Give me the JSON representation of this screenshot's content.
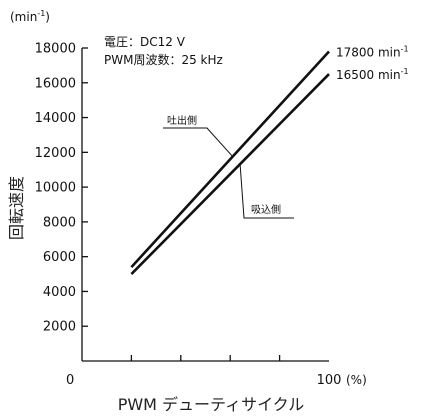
{
  "chart_data": {
    "type": "line",
    "unit_label": "(min",
    "unit_sup": "-1",
    "unit_close": ")",
    "ylabel": "回転速度",
    "xlabel": "PWM デューティサイクル",
    "x_unit": "(%)",
    "xlim": [
      0,
      100
    ],
    "ylim": [
      0,
      18000
    ],
    "x_ticks": [
      {
        "value": 0,
        "label": "0"
      },
      {
        "value": 100,
        "label": "100"
      }
    ],
    "x_minor_ticks": [
      20,
      40,
      60,
      80
    ],
    "y_ticks": [
      {
        "value": 2000,
        "label": "2000"
      },
      {
        "value": 4000,
        "label": "4000"
      },
      {
        "value": 6000,
        "label": "6000"
      },
      {
        "value": 8000,
        "label": "8000"
      },
      {
        "value": 10000,
        "label": "10000"
      },
      {
        "value": 12000,
        "label": "12000"
      },
      {
        "value": 14000,
        "label": "14000"
      },
      {
        "value": 16000,
        "label": "16000"
      },
      {
        "value": 18000,
        "label": "18000"
      }
    ],
    "conditions": [
      "電圧：DC12 V",
      "PWM周波数：25 kHz"
    ],
    "series": [
      {
        "name": "吐出側",
        "x": [
          20,
          100
        ],
        "y": [
          5400,
          17800
        ],
        "end_label": "17800 min",
        "end_sup": "-1"
      },
      {
        "name": "吸込側",
        "x": [
          20,
          100
        ],
        "y": [
          5000,
          16500
        ],
        "end_label": "16500 min",
        "end_sup": "-1"
      }
    ]
  }
}
